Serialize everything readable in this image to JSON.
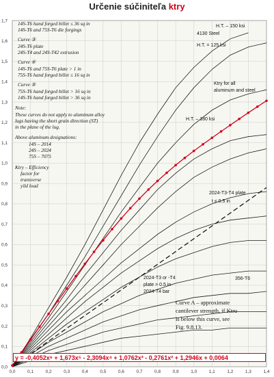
{
  "header": {
    "title_prefix": "Určenie súčiniteľa ",
    "title_accent": "ktry"
  },
  "chart_data": {
    "type": "line",
    "xlim": [
      0.0,
      1.4
    ],
    "ylim": [
      0.0,
      1.7
    ],
    "xticks": [
      "0,0",
      "0,1",
      "0,2",
      "0,3",
      "0,4",
      "0,5",
      "0,6",
      "0,7",
      "0,8",
      "0,9",
      "1,0",
      "1,1",
      "1,2",
      "1,3",
      "1,4"
    ],
    "yticks": [
      "0,0",
      "0,1",
      "0,2",
      "0,3",
      "0,4",
      "0,5",
      "0,6",
      "0,7",
      "0,8",
      "0,9",
      "1,0",
      "1,1",
      "1,2",
      "1,3",
      "1,4",
      "1,5",
      "1,6",
      "1,7"
    ],
    "grid": true,
    "fit": {
      "coefficients": [
        -0.4052,
        1.673,
        -2.3094,
        1.0762,
        -0.2761,
        1.2946,
        0.0064
      ],
      "points_x": [
        0.0,
        0.05,
        0.1,
        0.15,
        0.2,
        0.25,
        0.3,
        0.35,
        0.4,
        0.45,
        0.5,
        0.55,
        0.6,
        0.65,
        0.7,
        0.75,
        0.8,
        0.85,
        0.9,
        0.95,
        1.0,
        1.05,
        1.1,
        1.15,
        1.2,
        1.25,
        1.3,
        1.35,
        1.4
      ],
      "color": "#d0021b",
      "equation": "y = -0,4052x⁶ + 1,673x⁵ - 2,3094x⁴ + 1,0762x³ - 0,2761x² + 1,2946x + 0,0064"
    },
    "curves": [
      {
        "x": [
          0.0,
          0.1,
          0.2,
          0.3,
          0.4,
          0.5,
          0.6,
          0.7,
          0.8,
          0.9,
          1.0,
          1.1,
          1.2,
          1.3
        ],
        "y": [
          0.0,
          0.14,
          0.29,
          0.44,
          0.6,
          0.77,
          0.94,
          1.1,
          1.24,
          1.37,
          1.47,
          1.55,
          1.61,
          1.64
        ]
      },
      {
        "x": [
          0.0,
          0.1,
          0.2,
          0.3,
          0.4,
          0.5,
          0.6,
          0.7,
          0.8,
          0.9,
          1.0,
          1.1,
          1.2,
          1.3,
          1.4
        ],
        "y": [
          0.0,
          0.13,
          0.26,
          0.4,
          0.54,
          0.69,
          0.84,
          0.99,
          1.13,
          1.26,
          1.37,
          1.46,
          1.53,
          1.57,
          1.59
        ]
      },
      {
        "x": [
          0.0,
          0.1,
          0.2,
          0.3,
          0.4,
          0.5,
          0.6,
          0.7,
          0.8,
          0.9,
          1.0,
          1.1,
          1.2,
          1.3,
          1.4
        ],
        "y": [
          0.0,
          0.12,
          0.24,
          0.37,
          0.5,
          0.63,
          0.76,
          0.88,
          1.0,
          1.1,
          1.19,
          1.26,
          1.31,
          1.34,
          1.36
        ]
      },
      {
        "x": [
          0.0,
          0.1,
          0.2,
          0.3,
          0.4,
          0.5,
          0.6,
          0.7,
          0.8,
          0.9,
          1.0,
          1.1,
          1.2,
          1.3,
          1.4
        ],
        "y": [
          0.0,
          0.11,
          0.22,
          0.33,
          0.45,
          0.56,
          0.67,
          0.77,
          0.87,
          0.95,
          1.02,
          1.07,
          1.11,
          1.13,
          1.14
        ]
      },
      {
        "x": [
          0.0,
          0.1,
          0.2,
          0.3,
          0.4,
          0.5,
          0.6,
          0.7,
          0.8,
          0.9,
          1.0,
          1.1,
          1.2,
          1.3,
          1.4
        ],
        "y": [
          0.0,
          0.1,
          0.2,
          0.3,
          0.4,
          0.5,
          0.6,
          0.69,
          0.78,
          0.86,
          0.93,
          0.98,
          1.02,
          1.05,
          1.07
        ]
      },
      {
        "x": [
          0.0,
          0.1,
          0.2,
          0.3,
          0.4,
          0.5,
          0.6,
          0.7,
          0.8,
          0.9,
          1.0,
          1.1,
          1.2,
          1.3,
          1.4
        ],
        "y": [
          0.0,
          0.09,
          0.18,
          0.27,
          0.35,
          0.43,
          0.51,
          0.58,
          0.65,
          0.71,
          0.76,
          0.8,
          0.83,
          0.85,
          0.86
        ]
      },
      {
        "x": [
          0.0,
          0.1,
          0.2,
          0.3,
          0.4,
          0.5,
          0.6,
          0.7,
          0.8,
          0.9,
          1.0,
          1.1,
          1.2,
          1.3,
          1.4
        ],
        "y": [
          0.0,
          0.08,
          0.16,
          0.24,
          0.32,
          0.39,
          0.46,
          0.52,
          0.58,
          0.63,
          0.67,
          0.7,
          0.72,
          0.73,
          0.74
        ]
      },
      {
        "x": [
          0.0,
          0.1,
          0.2,
          0.3,
          0.4,
          0.5,
          0.6,
          0.7,
          0.8,
          0.9,
          1.0,
          1.1,
          1.2,
          1.3,
          1.4
        ],
        "y": [
          0.0,
          0.07,
          0.14,
          0.21,
          0.27,
          0.33,
          0.39,
          0.44,
          0.49,
          0.53,
          0.56,
          0.59,
          0.61,
          0.62,
          0.62
        ]
      },
      {
        "x": [
          0.0,
          0.1,
          0.2,
          0.3,
          0.4,
          0.5,
          0.6,
          0.7,
          0.8,
          0.9,
          1.0,
          1.1,
          1.2,
          1.3,
          1.4
        ],
        "y": [
          0.0,
          0.06,
          0.12,
          0.17,
          0.22,
          0.27,
          0.31,
          0.35,
          0.38,
          0.41,
          0.43,
          0.45,
          0.46,
          0.47,
          0.47
        ]
      },
      {
        "x": [
          0.0,
          0.1,
          0.2,
          0.3,
          0.4,
          0.5,
          0.6,
          0.7,
          0.8,
          0.9,
          1.0,
          1.1,
          1.2,
          1.3,
          1.4
        ],
        "y": [
          0.0,
          0.05,
          0.1,
          0.14,
          0.18,
          0.22,
          0.25,
          0.28,
          0.3,
          0.32,
          0.34,
          0.35,
          0.36,
          0.36,
          0.37
        ]
      },
      {
        "x": [
          0.0,
          0.1,
          0.2,
          0.3,
          0.4,
          0.5,
          0.6,
          0.7,
          0.8,
          0.9,
          1.0,
          1.1,
          1.2,
          1.3,
          1.4
        ],
        "y": [
          0.0,
          0.04,
          0.08,
          0.11,
          0.14,
          0.17,
          0.19,
          0.21,
          0.23,
          0.24,
          0.25,
          0.26,
          0.27,
          0.27,
          0.27
        ]
      },
      {
        "x": [
          0.0,
          0.1,
          0.2,
          0.3,
          0.4,
          0.5,
          0.6,
          0.7,
          0.8,
          0.9,
          1.0,
          1.1,
          1.2,
          1.3,
          1.4
        ],
        "y": [
          0.0,
          0.03,
          0.06,
          0.08,
          0.1,
          0.12,
          0.14,
          0.15,
          0.16,
          0.17,
          0.18,
          0.18,
          0.19,
          0.19,
          0.19
        ]
      }
    ],
    "curve_a": {
      "x": [
        0.0,
        1.4
      ],
      "y": [
        0.0,
        0.88
      ]
    },
    "note_lines": [
      "14S-T6 hand forged billet ≤ 36 sq in",
      "14S-T6 and 75S-T6 die forgings",
      "Curve ③",
      "24S-T6 plate",
      "24S-T4 and 24S-T42 extrusion",
      "Curve ④",
      "14S-T6 and 75S-T6 plate > 1 in",
      "75S-T6 hand forged billet ≤ 16 sq in",
      "Curve ⑤",
      "75S-T6 hand forged billet > 16 sq in",
      "14S-T6 hand forged billet > 36 sq in",
      "Note:",
      "These curves do not apply to aluminum alloy",
      "lugs having the short grain direction (ST)",
      "in the plane of the lug.",
      "Above aluminum designations:",
      "14S – 2014",
      "24S – 2024",
      "75S – 7075",
      "Ktry – Efficiency",
      "factor for",
      "transverse",
      "yild load"
    ],
    "annotations": [
      {
        "text": "H.T. – 150 ksi"
      },
      {
        "text": "4130 Steel"
      },
      {
        "text": "H.T. = 125 ksi"
      },
      {
        "text": "Ktry for all"
      },
      {
        "text": "aluminum and steel"
      },
      {
        "text": "H.T. – 180 ksi"
      },
      {
        "text": "2024-T3-T4 plate"
      },
      {
        "text": "t ≤ 0.5 in"
      },
      {
        "text": "2024-T3 or -T4"
      },
      {
        "text": "plate > 0.5 in"
      },
      {
        "text": "2024-T4 bar"
      },
      {
        "text": "356-T6"
      }
    ],
    "curve_a_note": [
      "Curve A – approximate",
      "cantilever strength, if Ktru",
      "is below this curve, see",
      "Fig. 9.8.13."
    ]
  }
}
